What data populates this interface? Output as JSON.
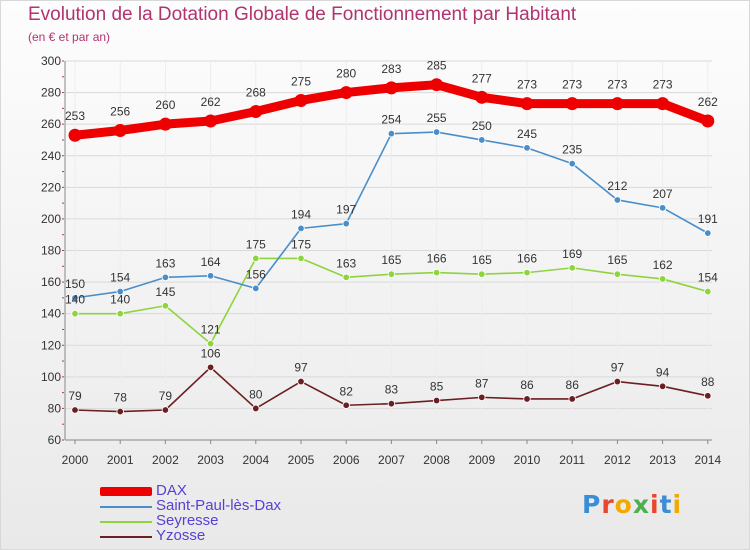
{
  "header": {
    "title": "Evolution de la Dotation Globale de Fonctionnement par Habitant",
    "subtitle": "(en € et par an)"
  },
  "logo": {
    "text": "Proxiti",
    "colors": [
      "#3b8ed6",
      "#e8472b",
      "#f2a900",
      "#4caf50",
      "#e8472b",
      "#3b8ed6",
      "#f2a900"
    ]
  },
  "chart_data": {
    "type": "line",
    "title": "Evolution de la Dotation Globale de Fonctionnement par Habitant",
    "subtitle": "(en € et par an)",
    "xlabel": "",
    "ylabel": "",
    "x": [
      "2000",
      "2001",
      "2002",
      "2003",
      "2004",
      "2005",
      "2006",
      "2007",
      "2008",
      "2009",
      "2010",
      "2011",
      "2012",
      "2013",
      "2014"
    ],
    "ylim": [
      60,
      300
    ],
    "yticks": [
      60,
      80,
      100,
      120,
      140,
      160,
      180,
      200,
      220,
      240,
      260,
      280,
      300
    ],
    "grid": "horizontal",
    "legend_position": "bottom-left",
    "series": [
      {
        "name": "DAX",
        "color": "#ee0000",
        "values": [
          253,
          256,
          260,
          262,
          268,
          275,
          280,
          283,
          285,
          277,
          273,
          273,
          273,
          273,
          262
        ],
        "labels": [
          "253",
          "256",
          "260",
          "262",
          "268",
          "275",
          "280",
          "283",
          "285",
          "277",
          "273",
          "273",
          "273",
          "273",
          "262"
        ]
      },
      {
        "name": "Saint-Paul-lès-Dax",
        "color": "#4a8ec9",
        "values": [
          150,
          154,
          163,
          164,
          156,
          194,
          197,
          254,
          255,
          250,
          245,
          235,
          212,
          207,
          191
        ],
        "labels": [
          "150",
          "154",
          "163",
          "164",
          "156",
          "194",
          "197",
          "254",
          "255",
          "250",
          "245",
          "235",
          "212",
          "207",
          "191"
        ]
      },
      {
        "name": "Seyresse",
        "color": "#8ed43f",
        "values": [
          140,
          140,
          145,
          121,
          175,
          175,
          163,
          165,
          166,
          165,
          166,
          169,
          165,
          162,
          154
        ],
        "labels": [
          "140",
          "140",
          "145",
          "121",
          "175",
          "175",
          "163",
          "165",
          "166",
          "165",
          "166",
          "169",
          "165",
          "162",
          "154"
        ]
      },
      {
        "name": "Yzosse",
        "color": "#6b1f22",
        "values": [
          79,
          78,
          79,
          106,
          80,
          97,
          82,
          83,
          85,
          87,
          86,
          86,
          97,
          94,
          88
        ],
        "labels": [
          "79",
          "78",
          "79",
          "106",
          "80",
          "97",
          "82",
          "83",
          "85",
          "87",
          "86",
          "86",
          "97",
          "94",
          "88"
        ]
      }
    ]
  }
}
